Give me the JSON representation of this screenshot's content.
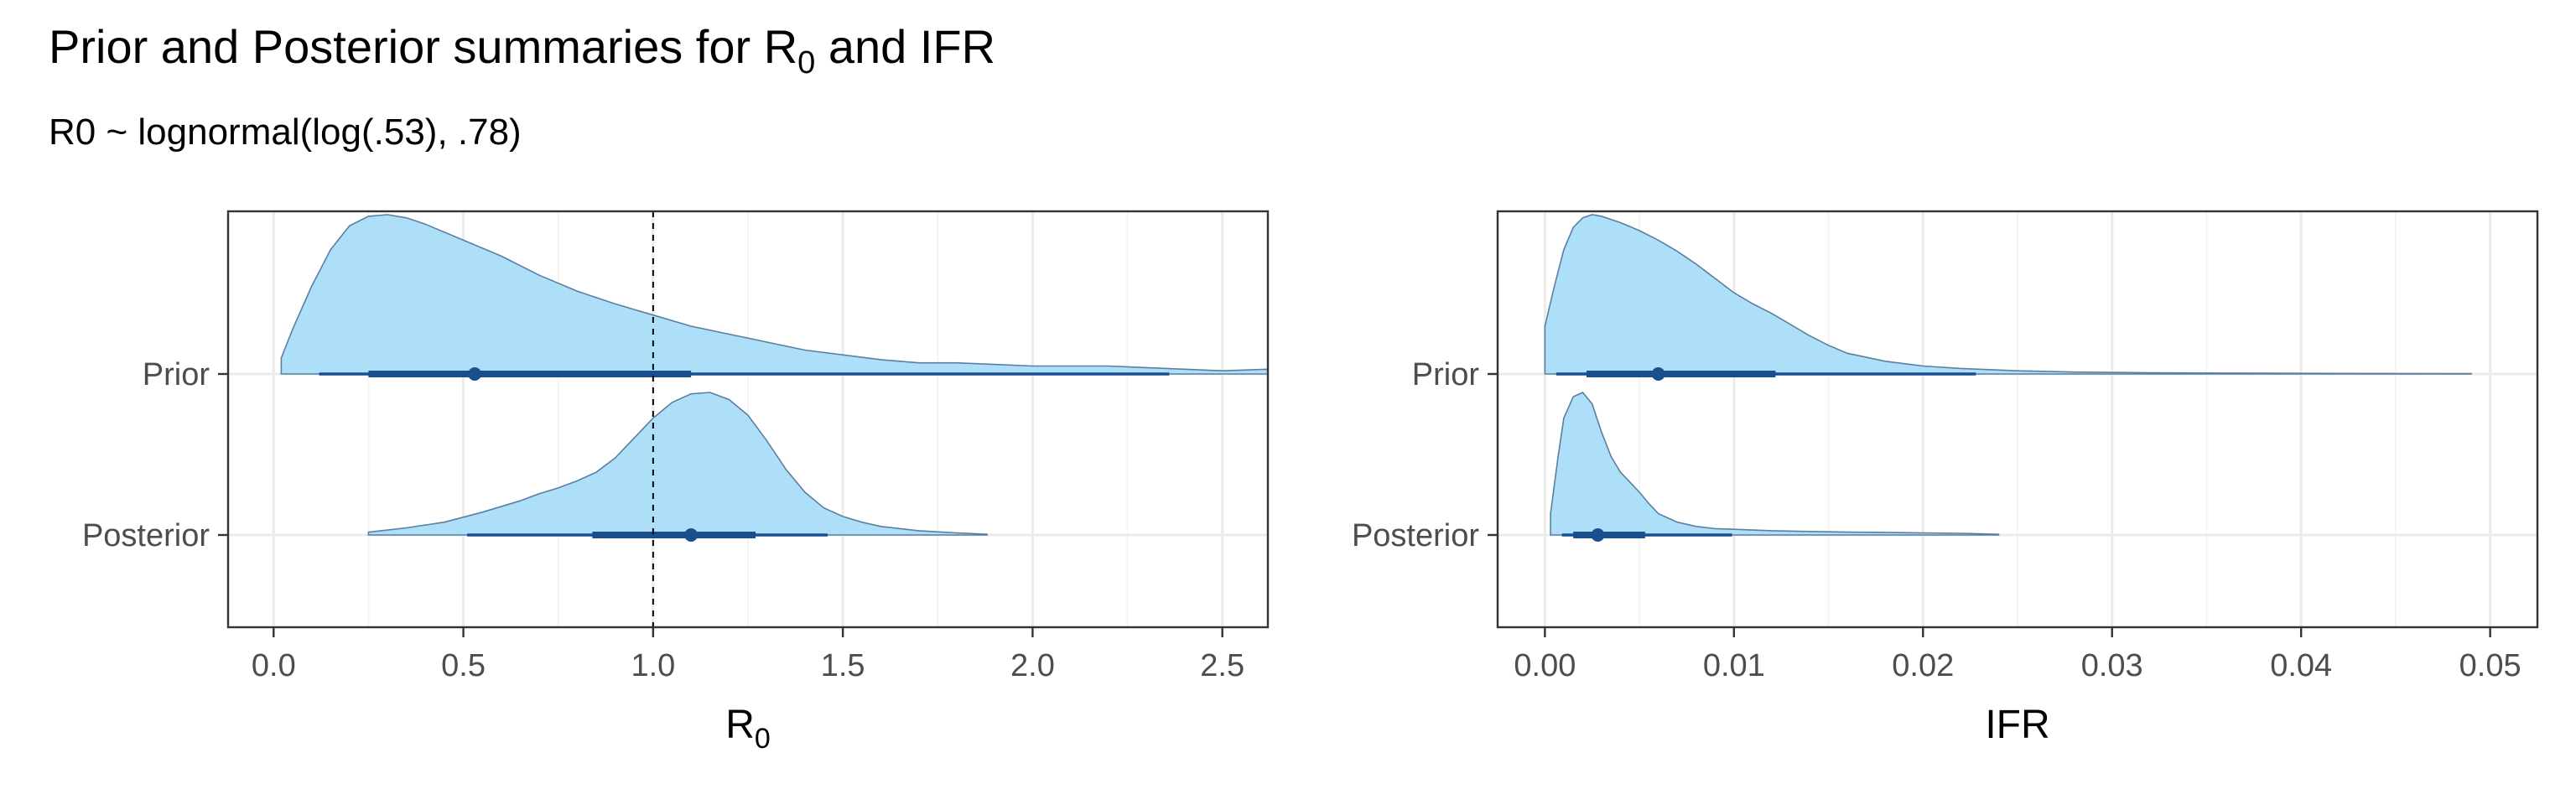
{
  "title": {
    "text": "Prior and Posterior summaries for R",
    "sub": "0",
    "suffix": " and IFR"
  },
  "subtitle": "R0 ~ lognormal(log(.53), .78)",
  "colors": {
    "fill": "#aedff9",
    "outline": "#5a7fa0",
    "interval": "#1a4f8f"
  },
  "chart_data": [
    {
      "type": "density-interval",
      "xlabel": "R",
      "xlabel_sub": "0",
      "xlim": [
        -0.12,
        2.62
      ],
      "xticks": [
        0.0,
        0.5,
        1.0,
        1.5,
        2.0,
        2.5
      ],
      "xticklabels": [
        "0.0",
        "0.5",
        "1.0",
        "1.5",
        "2.0",
        "2.5"
      ],
      "reference_line": 1.0,
      "categories": [
        "Prior",
        "Posterior"
      ],
      "series": [
        {
          "name": "Prior",
          "point": 0.53,
          "interval_inner": [
            0.25,
            1.1
          ],
          "interval_outer": [
            0.12,
            2.36
          ],
          "density": [
            [
              0.02,
              0.1
            ],
            [
              0.05,
              0.28
            ],
            [
              0.1,
              0.55
            ],
            [
              0.15,
              0.78
            ],
            [
              0.2,
              0.93
            ],
            [
              0.25,
              0.99
            ],
            [
              0.3,
              1.0
            ],
            [
              0.35,
              0.98
            ],
            [
              0.4,
              0.94
            ],
            [
              0.5,
              0.84
            ],
            [
              0.6,
              0.74
            ],
            [
              0.7,
              0.62
            ],
            [
              0.8,
              0.52
            ],
            [
              0.9,
              0.44
            ],
            [
              1.0,
              0.37
            ],
            [
              1.1,
              0.3
            ],
            [
              1.2,
              0.25
            ],
            [
              1.3,
              0.2
            ],
            [
              1.4,
              0.15
            ],
            [
              1.5,
              0.12
            ],
            [
              1.6,
              0.09
            ],
            [
              1.7,
              0.07
            ],
            [
              1.8,
              0.07
            ],
            [
              1.9,
              0.06
            ],
            [
              2.0,
              0.05
            ],
            [
              2.1,
              0.05
            ],
            [
              2.2,
              0.05
            ],
            [
              2.3,
              0.04
            ],
            [
              2.4,
              0.03
            ],
            [
              2.5,
              0.02
            ],
            [
              2.62,
              0.03
            ]
          ]
        },
        {
          "name": "Posterior",
          "point": 1.1,
          "interval_inner": [
            0.84,
            1.27
          ],
          "interval_outer": [
            0.51,
            1.46
          ],
          "density": [
            [
              0.25,
              0.02
            ],
            [
              0.35,
              0.05
            ],
            [
              0.45,
              0.09
            ],
            [
              0.55,
              0.16
            ],
            [
              0.65,
              0.24
            ],
            [
              0.7,
              0.29
            ],
            [
              0.75,
              0.33
            ],
            [
              0.8,
              0.38
            ],
            [
              0.85,
              0.44
            ],
            [
              0.9,
              0.54
            ],
            [
              0.95,
              0.68
            ],
            [
              1.0,
              0.82
            ],
            [
              1.05,
              0.93
            ],
            [
              1.1,
              0.99
            ],
            [
              1.15,
              1.0
            ],
            [
              1.2,
              0.95
            ],
            [
              1.25,
              0.84
            ],
            [
              1.3,
              0.66
            ],
            [
              1.35,
              0.46
            ],
            [
              1.4,
              0.3
            ],
            [
              1.45,
              0.19
            ],
            [
              1.5,
              0.13
            ],
            [
              1.55,
              0.09
            ],
            [
              1.6,
              0.06
            ],
            [
              1.7,
              0.03
            ],
            [
              1.8,
              0.015
            ],
            [
              1.88,
              0.005
            ]
          ]
        }
      ]
    },
    {
      "type": "density-interval",
      "xlabel": "IFR",
      "xlabel_sub": "",
      "xlim": [
        -0.0025,
        0.0525
      ],
      "xticks": [
        0.0,
        0.01,
        0.02,
        0.03,
        0.04,
        0.05
      ],
      "xticklabels": [
        "0.00",
        "0.01",
        "0.02",
        "0.03",
        "0.04",
        "0.05"
      ],
      "reference_line": null,
      "categories": [
        "Prior",
        "Posterior"
      ],
      "series": [
        {
          "name": "Prior",
          "point": 0.006,
          "interval_inner": [
            0.0022,
            0.0122
          ],
          "interval_outer": [
            0.0006,
            0.0228
          ],
          "density": [
            [
              0.0,
              0.3
            ],
            [
              0.0005,
              0.55
            ],
            [
              0.001,
              0.78
            ],
            [
              0.0015,
              0.92
            ],
            [
              0.002,
              0.98
            ],
            [
              0.0025,
              1.0
            ],
            [
              0.003,
              0.99
            ],
            [
              0.004,
              0.95
            ],
            [
              0.005,
              0.9
            ],
            [
              0.006,
              0.84
            ],
            [
              0.007,
              0.77
            ],
            [
              0.008,
              0.69
            ],
            [
              0.009,
              0.6
            ],
            [
              0.01,
              0.51
            ],
            [
              0.011,
              0.44
            ],
            [
              0.012,
              0.38
            ],
            [
              0.013,
              0.31
            ],
            [
              0.014,
              0.24
            ],
            [
              0.015,
              0.18
            ],
            [
              0.016,
              0.13
            ],
            [
              0.018,
              0.08
            ],
            [
              0.02,
              0.05
            ],
            [
              0.022,
              0.035
            ],
            [
              0.025,
              0.02
            ],
            [
              0.028,
              0.012
            ],
            [
              0.032,
              0.008
            ],
            [
              0.036,
              0.006
            ],
            [
              0.04,
              0.004
            ],
            [
              0.045,
              0.003
            ],
            [
              0.049,
              0.002
            ]
          ]
        },
        {
          "name": "Posterior",
          "point": 0.0028,
          "interval_inner": [
            0.0015,
            0.0053
          ],
          "interval_outer": [
            0.0009,
            0.0099
          ],
          "density": [
            [
              0.0003,
              0.15
            ],
            [
              0.0007,
              0.55
            ],
            [
              0.001,
              0.82
            ],
            [
              0.0015,
              0.97
            ],
            [
              0.002,
              1.0
            ],
            [
              0.0025,
              0.92
            ],
            [
              0.003,
              0.72
            ],
            [
              0.0035,
              0.55
            ],
            [
              0.004,
              0.44
            ],
            [
              0.0045,
              0.37
            ],
            [
              0.005,
              0.3
            ],
            [
              0.0055,
              0.22
            ],
            [
              0.006,
              0.15
            ],
            [
              0.007,
              0.09
            ],
            [
              0.008,
              0.06
            ],
            [
              0.009,
              0.045
            ],
            [
              0.01,
              0.04
            ],
            [
              0.012,
              0.03
            ],
            [
              0.014,
              0.025
            ],
            [
              0.016,
              0.02
            ],
            [
              0.018,
              0.018
            ],
            [
              0.02,
              0.015
            ],
            [
              0.022,
              0.012
            ],
            [
              0.024,
              0.005
            ]
          ]
        }
      ]
    }
  ]
}
